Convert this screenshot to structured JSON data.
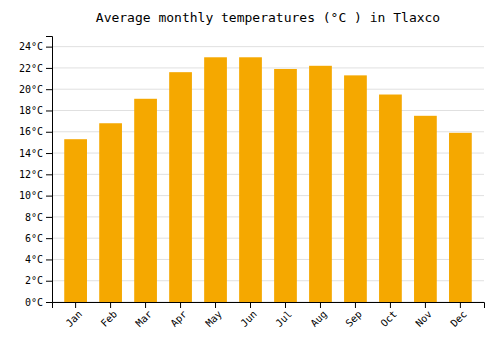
{
  "chart_data": {
    "type": "bar",
    "title": "Average monthly temperatures (°C ) in Tlaxco",
    "categories": [
      "Jan",
      "Feb",
      "Mar",
      "Apr",
      "May",
      "Jun",
      "Jul",
      "Aug",
      "Sep",
      "Oct",
      "Nov",
      "Dec"
    ],
    "values": [
      15.3,
      16.8,
      19.1,
      21.6,
      23.0,
      23.0,
      21.9,
      22.2,
      21.3,
      19.5,
      17.5,
      15.9
    ],
    "color": "#F5A800",
    "ylim": [
      0,
      25
    ],
    "yticks": [
      {
        "value": 0,
        "label": "0°C"
      },
      {
        "value": 2,
        "label": "2°C"
      },
      {
        "value": 4,
        "label": "4°C"
      },
      {
        "value": 6,
        "label": "6°C"
      },
      {
        "value": 8,
        "label": "8°C"
      },
      {
        "value": 10,
        "label": "10°C"
      },
      {
        "value": 12,
        "label": "12°C"
      },
      {
        "value": 14,
        "label": "14°C"
      },
      {
        "value": 16,
        "label": "16°C"
      },
      {
        "value": 18,
        "label": "18°C"
      },
      {
        "value": 20,
        "label": "20°C"
      },
      {
        "value": 22,
        "label": "22°C"
      },
      {
        "value": 24,
        "label": "24°C"
      }
    ],
    "grid": true
  }
}
